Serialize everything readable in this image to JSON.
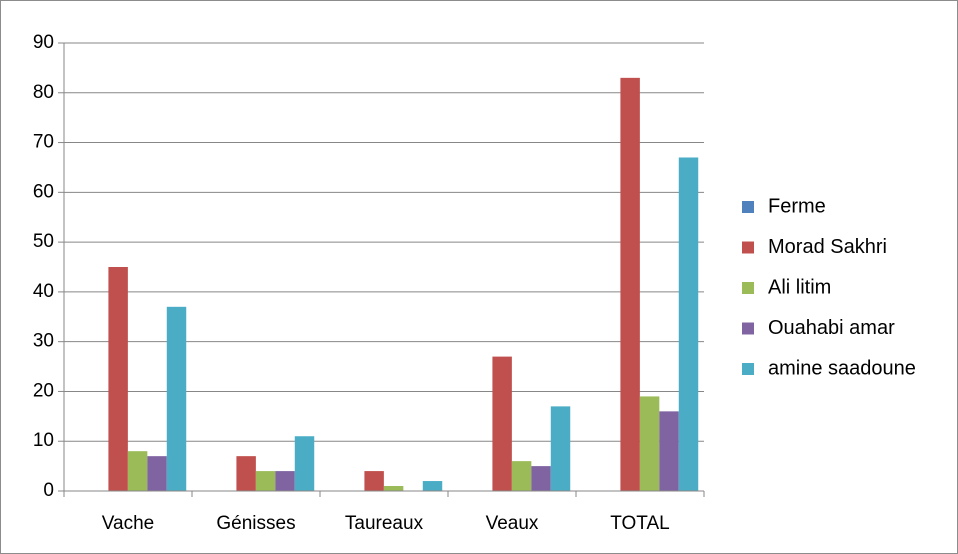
{
  "chart_data": {
    "type": "bar",
    "categories": [
      "Vache",
      "Génisses",
      "Taureaux",
      "Veaux",
      "TOTAL"
    ],
    "series": [
      {
        "name": "Ferme",
        "color": "#4f81bd",
        "values": [
          0,
          0,
          0,
          0,
          0
        ]
      },
      {
        "name": "Morad Sakhri",
        "color": "#c0504d",
        "values": [
          45,
          7,
          4,
          27,
          83
        ]
      },
      {
        "name": "Ali litim",
        "color": "#9bbb59",
        "values": [
          8,
          4,
          1,
          6,
          19
        ]
      },
      {
        "name": "Ouahabi amar",
        "color": "#8064a2",
        "values": [
          7,
          4,
          0,
          5,
          16
        ]
      },
      {
        "name": "amine saadoune",
        "color": "#4bacc6",
        "values": [
          37,
          11,
          2,
          17,
          67
        ]
      }
    ],
    "ylim": [
      0,
      90
    ],
    "yticks": [
      0,
      10,
      20,
      30,
      40,
      50,
      60,
      70,
      80,
      90
    ],
    "grid": true,
    "legend": "right"
  }
}
